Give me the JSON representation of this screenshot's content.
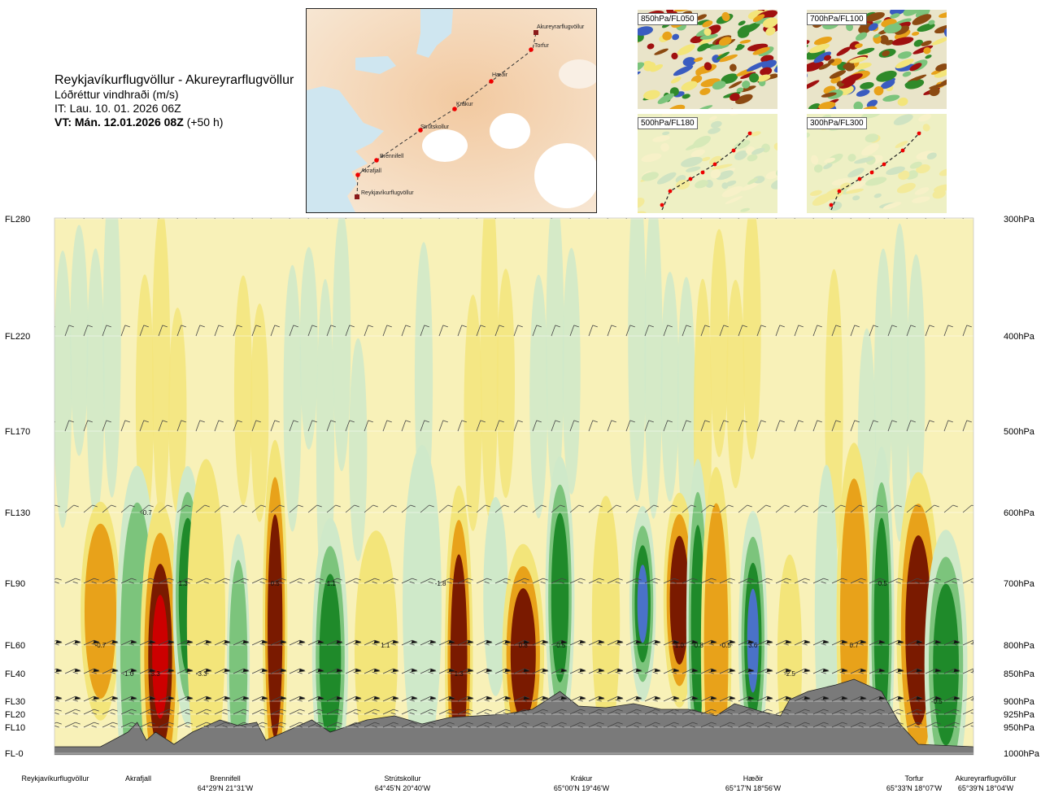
{
  "title": {
    "route": "Reykjavíkurflugvöllur - Akureyrarflugvöllur",
    "variable": "Lóðréttur vindhraði (m/s)",
    "it": "IT: Lau. 10. 01. 2026 06Z",
    "vt_bold": "VT: Mán. 12.01.2026 08Z",
    "vt_suffix": "(+50 h)"
  },
  "map": {
    "waypoints": [
      {
        "name": "Reykjavíkurflugvöllur"
      },
      {
        "name": "Akrafjall"
      },
      {
        "name": "Brennifell"
      },
      {
        "name": "Strútskollur"
      },
      {
        "name": "Krákur"
      },
      {
        "name": "Hæðir"
      },
      {
        "name": "Torfur"
      },
      {
        "name": "Akureyrarflugvöllur"
      }
    ]
  },
  "thumbnails": [
    {
      "label": "850hPa/FL050"
    },
    {
      "label": "700hPa/FL100"
    },
    {
      "label": "500hPa/FL180"
    },
    {
      "label": "300hPa/FL300"
    }
  ],
  "chart_data": {
    "type": "heatmap",
    "title": "Reykjavíkurflugvöllur - Akureyrarflugvöllur",
    "variable": "Lóðréttur vindhraði (m/s)",
    "left_axis_ticks": [
      "FL280",
      "FL220",
      "FL170",
      "FL130",
      "FL90",
      "FL60",
      "FL40",
      "FL30",
      "FL20",
      "FL10",
      "FL-0"
    ],
    "right_axis_ticks": [
      "300hPa",
      "400hPa",
      "500hPa",
      "600hPa",
      "700hPa",
      "800hPa",
      "850hPa",
      "900hPa",
      "925hPa",
      "950hPa",
      "1000hPa"
    ],
    "pressure_levels_hpa": [
      300,
      400,
      500,
      600,
      700,
      800,
      850,
      900,
      925,
      950,
      1000
    ],
    "x_locations": [
      {
        "name": "Reykjavíkurflugvöllur",
        "coord": ""
      },
      {
        "name": "Akrafjall",
        "coord": ""
      },
      {
        "name": "Brennifell",
        "coord": "64°29'N 21°31'W"
      },
      {
        "name": "Strútskollur",
        "coord": "64°45'N 20°40'W"
      },
      {
        "name": "Krákur",
        "coord": "65°00'N 19°46'W"
      },
      {
        "name": "Hæðir",
        "coord": "65°17'N 18°56'W"
      },
      {
        "name": "Torfur",
        "coord": "65°33'N 18°07'W"
      },
      {
        "name": "Akureyrarflugvöllur",
        "coord": "65°39'N 18°04'W"
      }
    ],
    "value_labels": [
      {
        "text": "-0.7",
        "pressure": 800,
        "position": 0.05
      },
      {
        "text": "-0.7",
        "pressure": 600,
        "position": 0.1
      },
      {
        "text": "-1.0",
        "pressure": 850,
        "position": 0.08
      },
      {
        "text": "3.3",
        "pressure": 850,
        "position": 0.11
      },
      {
        "text": "1.3",
        "pressure": 700,
        "position": 0.14
      },
      {
        "text": "-3.3",
        "pressure": 850,
        "position": 0.16
      },
      {
        "text": "0.5",
        "pressure": 700,
        "position": 0.24
      },
      {
        "text": "-1.1",
        "pressure": 700,
        "position": 0.3
      },
      {
        "text": "1.1",
        "pressure": 800,
        "position": 0.36
      },
      {
        "text": "-1.8",
        "pressure": 700,
        "position": 0.42
      },
      {
        "text": "1.3",
        "pressure": 850,
        "position": 0.44
      },
      {
        "text": "0.8",
        "pressure": 800,
        "position": 0.51
      },
      {
        "text": "-0.5",
        "pressure": 800,
        "position": 0.55
      },
      {
        "text": "1.0",
        "pressure": 800,
        "position": 0.68
      },
      {
        "text": "-0.8",
        "pressure": 800,
        "position": 0.7
      },
      {
        "text": "-0.5",
        "pressure": 800,
        "position": 0.73
      },
      {
        "text": "3.6",
        "pressure": 800,
        "position": 0.76
      },
      {
        "text": "-2.5",
        "pressure": 850,
        "position": 0.8
      },
      {
        "text": "0.7",
        "pressure": 800,
        "position": 0.87
      },
      {
        "text": "-0.5",
        "pressure": 700,
        "position": 0.9
      },
      {
        "text": "-0.5",
        "pressure": 900,
        "position": 0.96
      }
    ],
    "colors": {
      "strong_down": "#cc0000",
      "down": "#7a1a00",
      "weak_down": "#e8a21a",
      "slight_down": "#f3e57a",
      "neutral": "#f8f1b8",
      "slight_up": "#cfe9c9",
      "weak_up": "#7cc47c",
      "up": "#1f8a2a",
      "strong_up": "#4a72c8",
      "very_strong_up": "#6a5ae0",
      "terrain": "#7a7a7a"
    },
    "legend": "none",
    "grid": true
  }
}
